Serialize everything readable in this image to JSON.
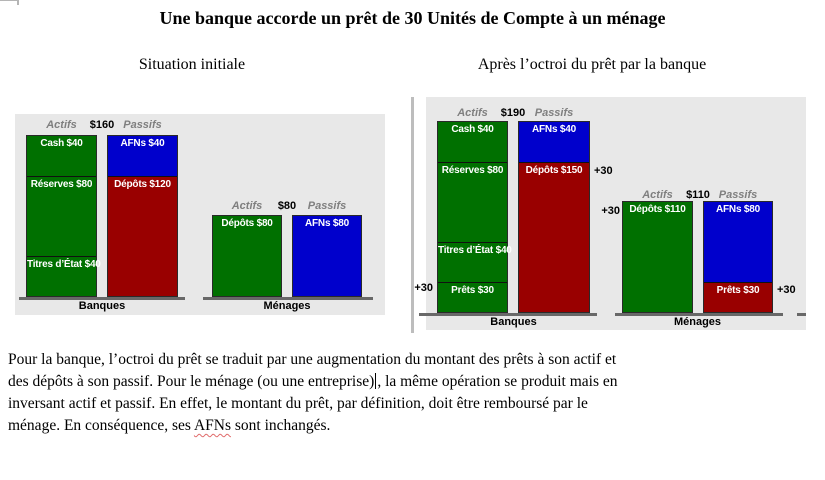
{
  "page": {
    "title": "Une banque accorde un prêt de 30 Unités de Compte à un ménage",
    "left_subtitle": "Situation initiale",
    "right_subtitle": "Après l’octroi du prêt par la banque"
  },
  "colors": {
    "asset_green": "#007000",
    "afn_blue": "#0000cc",
    "liability_red": "#990000",
    "panel_bg": "#e8e8e8",
    "axis_gray": "#686868",
    "header_gray": "#7f7f7f"
  },
  "chart_data": [
    {
      "type": "bar",
      "subtype": "stacked-balance-sheet",
      "panel": "Situation initiale",
      "entity": "Banques",
      "columns": [
        "Actifs",
        "Passifs"
      ],
      "total_label": "$160",
      "series": [
        {
          "name": "Actifs",
          "segments": [
            {
              "label": "Cash $40",
              "value": 40,
              "color": "green"
            },
            {
              "label": "Réserves $80",
              "value": 80,
              "color": "green"
            },
            {
              "label": "Titres d’État $40",
              "value": 40,
              "color": "green"
            }
          ]
        },
        {
          "name": "Passifs",
          "segments": [
            {
              "label": "AFNs $40",
              "value": 40,
              "color": "blue"
            },
            {
              "label": "Dépôts $120",
              "value": 120,
              "color": "red"
            }
          ]
        }
      ],
      "annotations": []
    },
    {
      "type": "bar",
      "subtype": "stacked-balance-sheet",
      "panel": "Situation initiale",
      "entity": "Ménages",
      "columns": [
        "Actifs",
        "Passifs"
      ],
      "total_label": "$80",
      "series": [
        {
          "name": "Actifs",
          "segments": [
            {
              "label": "Dépôts $80",
              "value": 80,
              "color": "green"
            }
          ]
        },
        {
          "name": "Passifs",
          "segments": [
            {
              "label": "AFNs $80",
              "value": 80,
              "color": "blue"
            }
          ]
        }
      ],
      "annotations": []
    },
    {
      "type": "bar",
      "subtype": "stacked-balance-sheet",
      "panel": "Après l’octroi du prêt par la banque",
      "entity": "Banques",
      "columns": [
        "Actifs",
        "Passifs"
      ],
      "total_label": "$190",
      "series": [
        {
          "name": "Actifs",
          "segments": [
            {
              "label": "Cash $40",
              "value": 40,
              "color": "green"
            },
            {
              "label": "Réserves $80",
              "value": 80,
              "color": "green"
            },
            {
              "label": "Titres d’État $40",
              "value": 40,
              "color": "green"
            },
            {
              "label": "Prêts $30",
              "value": 30,
              "color": "green"
            }
          ]
        },
        {
          "name": "Passifs",
          "segments": [
            {
              "label": "AFNs $40",
              "value": 40,
              "color": "blue"
            },
            {
              "label": "Dépôts $150",
              "value": 150,
              "color": "red"
            }
          ]
        }
      ],
      "annotations": [
        {
          "text": "+30",
          "anchor": "Prêts $30",
          "side": "left"
        },
        {
          "text": "+30",
          "anchor": "Dépôts $150",
          "side": "right"
        }
      ]
    },
    {
      "type": "bar",
      "subtype": "stacked-balance-sheet",
      "panel": "Après l’octroi du prêt par la banque",
      "entity": "Ménages",
      "columns": [
        "Actifs",
        "Passifs"
      ],
      "total_label": "$110",
      "series": [
        {
          "name": "Actifs",
          "segments": [
            {
              "label": "Dépôts $110",
              "value": 110,
              "color": "green"
            }
          ]
        },
        {
          "name": "Passifs",
          "segments": [
            {
              "label": "AFNs $80",
              "value": 80,
              "color": "blue"
            },
            {
              "label": "Prêts $30",
              "value": 30,
              "color": "red"
            }
          ]
        }
      ],
      "annotations": [
        {
          "text": "+30",
          "anchor": "Dépôts $110",
          "side": "left"
        },
        {
          "text": "+30",
          "anchor": "Prêts $30",
          "side": "right"
        }
      ]
    }
  ],
  "paragraph": {
    "line1": "Pour la banque, l’octroi du prêt se traduit par une augmentation du montant des prêts à son actif et",
    "line2_before_caret": "des dépôts à son passif. Pour le ménage (ou une entreprise)",
    "line2_after_caret": ", la même opération se produit mais en",
    "line3": "inversant actif et passif. En effet, le montant du prêt, par définition, doit être remboursé par le",
    "line4_before": "ménage. En conséquence, ses ",
    "line4_word": "AFNs",
    "line4_after": " sont inchangés."
  }
}
